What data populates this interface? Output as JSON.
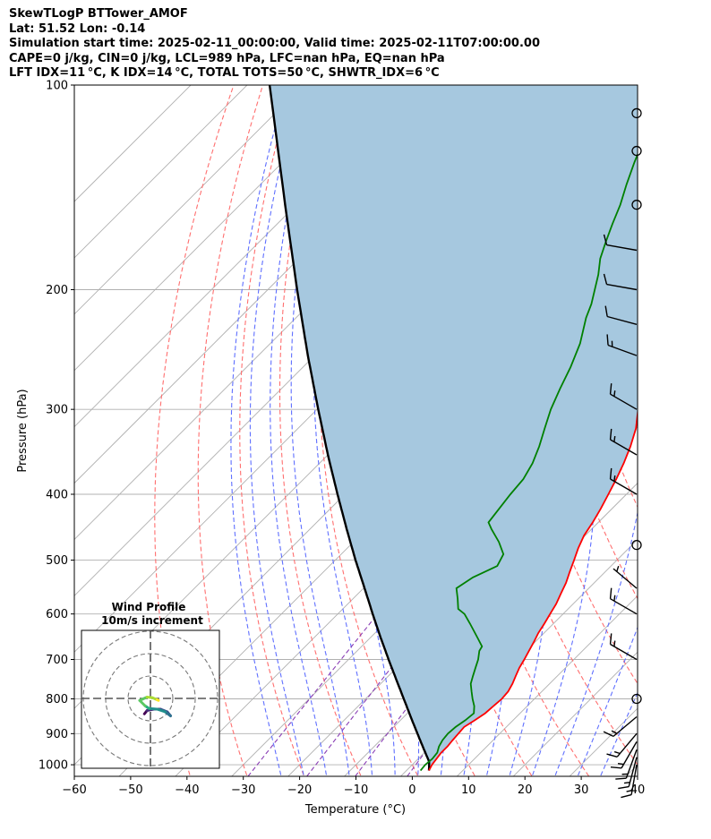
{
  "header": {
    "lines": [
      "SkewTLogP BTTower_AMOF",
      "Lat: 51.52   Lon: -0.14",
      "Simulation start time: 2025-02-11_00:00:00, Valid time: 2025-02-11T07:00:00.00",
      "CAPE=0 j/kg, CIN=0 j/kg, LCL=989 hPa, LFC=nan hPa, EQ=nan hPa",
      "LFT IDX=11 °C, K IDX=14 °C, TOTAL TOTS=50 °C, SHWTR_IDX=6 °C"
    ]
  },
  "chart_data": [
    {
      "type": "line",
      "title": "",
      "xlabel": "Temperature (°C)",
      "ylabel": "Pressure (hPa)",
      "xlim": [
        -60,
        40
      ],
      "ylim": [
        1040,
        100
      ],
      "y_scale": "log",
      "skew": "temperature isotherms skewed about 45°",
      "x_ticks": [
        "−60",
        "−50",
        "−40",
        "−30",
        "−20",
        "−10",
        "0",
        "10",
        "20",
        "30",
        "40"
      ],
      "y_ticks": [
        "100",
        "200",
        "300",
        "400",
        "500",
        "600",
        "700",
        "800",
        "900",
        "1000"
      ],
      "grid": true,
      "background_lines": [
        "isotherms (grey)",
        "dry adiabats (red, dashed)",
        "moist adiabats (blue, dashed)",
        "mixing ratio lines (purple, dashed)"
      ],
      "colors": {
        "temperature": "#ff0000",
        "dewpoint": "#008000",
        "parcel": "#000000",
        "cape_cin_fill": "#a6c8df",
        "dry_adiabat": "#ff6f6f",
        "moist_adiabat": "#5f6fff",
        "mixing_ratio": "#8a3db5",
        "isotherm": "#b0b0b0"
      },
      "series": [
        {
          "key": "temperature",
          "points": [
            [
              1020,
              4.0
            ],
            [
              1000,
              3.5
            ],
            [
              960,
              3.0
            ],
            [
              940,
              3.0
            ],
            [
              920,
              2.8
            ],
            [
              880,
              2.5
            ],
            [
              860,
              3.2
            ],
            [
              840,
              3.8
            ],
            [
              820,
              4.0
            ],
            [
              800,
              4.2
            ],
            [
              780,
              4.0
            ],
            [
              760,
              3.4
            ],
            [
              740,
              2.6
            ],
            [
              720,
              1.8
            ],
            [
              700,
              1.2
            ],
            [
              680,
              0.5
            ],
            [
              660,
              -0.2
            ],
            [
              640,
              -1.0
            ],
            [
              620,
              -1.6
            ],
            [
              600,
              -2.3
            ],
            [
              580,
              -3.0
            ],
            [
              560,
              -4.0
            ],
            [
              540,
              -5.0
            ],
            [
              520,
              -6.3
            ],
            [
              500,
              -7.6
            ],
            [
              480,
              -9.0
            ],
            [
              460,
              -10.2
            ],
            [
              440,
              -11.0
            ],
            [
              420,
              -12.0
            ],
            [
              400,
              -13.2
            ],
            [
              380,
              -14.5
            ],
            [
              360,
              -16.0
            ],
            [
              340,
              -17.8
            ],
            [
              320,
              -20.0
            ],
            [
              300,
              -23.0
            ],
            [
              280,
              -26.0
            ],
            [
              260,
              -29.2
            ],
            [
              240,
              -33.0
            ],
            [
              220,
              -36.8
            ],
            [
              200,
              -40.5
            ],
            [
              180,
              -44.0
            ],
            [
              170,
              -46.0
            ],
            [
              160,
              -48.5
            ],
            [
              150,
              -51.5
            ],
            [
              140,
              -54.7
            ],
            [
              130,
              -58.0
            ],
            [
              120,
              -61.5
            ],
            [
              110,
              -65.0
            ],
            [
              100,
              -68.5
            ]
          ]
        },
        {
          "key": "dewpoint",
          "points": [
            [
              1020,
              2.5
            ],
            [
              1000,
              2.3
            ],
            [
              980,
              2.5
            ],
            [
              960,
              2.3
            ],
            [
              940,
              1.5
            ],
            [
              920,
              1.0
            ],
            [
              900,
              0.8
            ],
            [
              880,
              1.0
            ],
            [
              860,
              1.5
            ],
            [
              840,
              1.8
            ],
            [
              820,
              0.6
            ],
            [
              800,
              -1.0
            ],
            [
              780,
              -2.5
            ],
            [
              760,
              -4.0
            ],
            [
              740,
              -5.0
            ],
            [
              720,
              -6.0
            ],
            [
              700,
              -7.0
            ],
            [
              680,
              -8.3
            ],
            [
              670,
              -8.6
            ],
            [
              650,
              -11.0
            ],
            [
              620,
              -14.8
            ],
            [
              600,
              -17.5
            ],
            [
              590,
              -19.5
            ],
            [
              570,
              -21.4
            ],
            [
              550,
              -23.5
            ],
            [
              530,
              -22.5
            ],
            [
              510,
              -20.2
            ],
            [
              490,
              -21.2
            ],
            [
              470,
              -24.2
            ],
            [
              450,
              -27.8
            ],
            [
              440,
              -29.5
            ],
            [
              400,
              -30.6
            ],
            [
              380,
              -31.0
            ],
            [
              360,
              -32.2
            ],
            [
              340,
              -34.0
            ],
            [
              320,
              -36.2
            ],
            [
              300,
              -38.5
            ],
            [
              280,
              -40.5
            ],
            [
              260,
              -42.5
            ],
            [
              240,
              -45.0
            ],
            [
              220,
              -48.5
            ],
            [
              210,
              -50.0
            ],
            [
              190,
              -54.0
            ],
            [
              180,
              -56.5
            ],
            [
              170,
              -58.5
            ],
            [
              160,
              -60.5
            ],
            [
              150,
              -62.5
            ],
            [
              140,
              -65.0
            ],
            [
              130,
              -67.5
            ],
            [
              120,
              -70.0
            ],
            [
              110,
              -72.5
            ],
            [
              100,
              -75.0
            ]
          ]
        },
        {
          "key": "parcel",
          "points": [
            [
              1020,
              4.0
            ],
            [
              1000,
              3.0
            ],
            [
              989,
              2.4
            ],
            [
              950,
              -0.6
            ],
            [
              900,
              -4.6
            ],
            [
              850,
              -8.8
            ],
            [
              800,
              -13.2
            ],
            [
              750,
              -17.9
            ],
            [
              700,
              -22.9
            ],
            [
              650,
              -28.2
            ],
            [
              600,
              -33.8
            ],
            [
              550,
              -39.8
            ],
            [
              500,
              -46.4
            ],
            [
              450,
              -53.5
            ],
            [
              400,
              -61.3
            ],
            [
              350,
              -70.0
            ],
            [
              300,
              -79.8
            ],
            [
              250,
              -91.2
            ],
            [
              200,
              -104.8
            ],
            [
              150,
              -122.0
            ],
            [
              100,
              -146.0
            ]
          ]
        }
      ]
    },
    {
      "type": "barbs",
      "title": "",
      "wind_barbs": [
        {
          "p": 1000,
          "kind": "barb",
          "dir_deg": 190,
          "speed": 15
        },
        {
          "p": 975,
          "kind": "barb",
          "dir_deg": 195,
          "speed": 15
        },
        {
          "p": 950,
          "kind": "barb",
          "dir_deg": 200,
          "speed": 15
        },
        {
          "p": 925,
          "kind": "barb",
          "dir_deg": 210,
          "speed": 15
        },
        {
          "p": 900,
          "kind": "barb",
          "dir_deg": 220,
          "speed": 15
        },
        {
          "p": 850,
          "kind": "barb",
          "dir_deg": 230,
          "speed": 15
        },
        {
          "p": 800,
          "kind": "calm"
        },
        {
          "p": 700,
          "kind": "barb",
          "dir_deg": 300,
          "speed": 15
        },
        {
          "p": 600,
          "kind": "barb",
          "dir_deg": 300,
          "speed": 15
        },
        {
          "p": 550,
          "kind": "barb",
          "dir_deg": 310,
          "speed": 5
        },
        {
          "p": 475,
          "kind": "calm"
        },
        {
          "p": 400,
          "kind": "barb",
          "dir_deg": 300,
          "speed": 15
        },
        {
          "p": 350,
          "kind": "barb",
          "dir_deg": 300,
          "speed": 15
        },
        {
          "p": 300,
          "kind": "barb",
          "dir_deg": 300,
          "speed": 15
        },
        {
          "p": 250,
          "kind": "barb",
          "dir_deg": 290,
          "speed": 15
        },
        {
          "p": 225,
          "kind": "barb",
          "dir_deg": 285,
          "speed": 10
        },
        {
          "p": 200,
          "kind": "barb",
          "dir_deg": 280,
          "speed": 10
        },
        {
          "p": 175,
          "kind": "barb",
          "dir_deg": 280,
          "speed": 10
        },
        {
          "p": 150,
          "kind": "calm"
        },
        {
          "p": 125,
          "kind": "calm"
        },
        {
          "p": 110,
          "kind": "calm"
        }
      ]
    },
    {
      "type": "scatter",
      "title": "Wind Profile",
      "subtitle": "10m/s increment",
      "rings": 3,
      "hodograph": {
        "u": [
          -0.9,
          -0.5,
          0.5,
          1.5,
          2.5,
          3.0,
          2.2,
          1.0,
          -0.2,
          -0.8,
          -1.6,
          -0.5,
          0.3,
          1.0,
          1.2
        ],
        "v": [
          -2.3,
          -1.8,
          -1.6,
          -1.6,
          -2.0,
          -2.6,
          -2.0,
          -1.6,
          -1.5,
          -1.1,
          -0.3,
          0.2,
          0.1,
          -0.2,
          -0.3
        ]
      },
      "colormap": "viridis"
    }
  ]
}
